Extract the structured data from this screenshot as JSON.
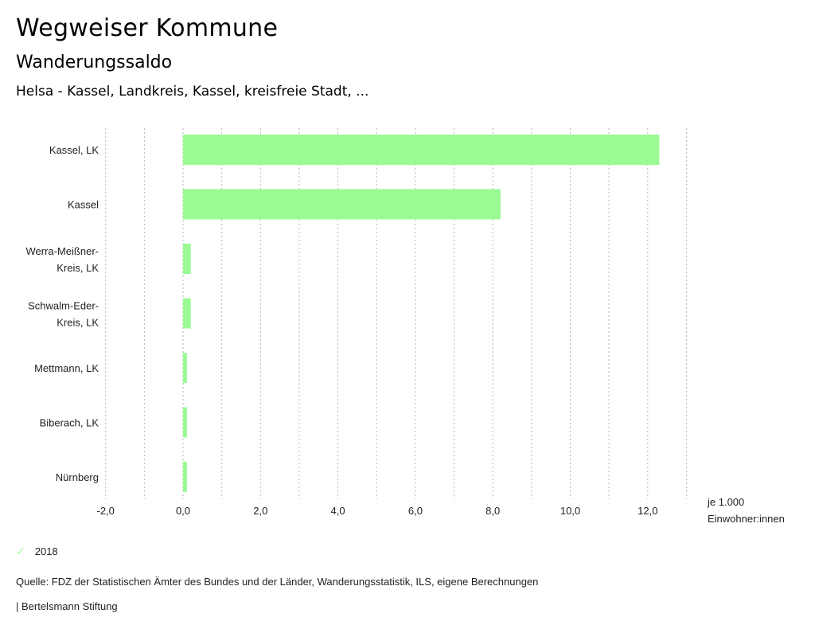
{
  "header": {
    "title": "Wegweiser Kommune",
    "subtitle": "Wanderungssaldo",
    "filter": "Helsa - Kassel, Landkreis, Kassel, kreisfreie Stadt, ..."
  },
  "chart_data": {
    "type": "bar",
    "orientation": "horizontal",
    "title": "Wanderungssaldo",
    "categories": [
      [
        "Kassel, LK"
      ],
      [
        "Kassel"
      ],
      [
        "Werra-Meißner-",
        "Kreis, LK"
      ],
      [
        "Schwalm-Eder-",
        "Kreis, LK"
      ],
      [
        "Mettmann, LK"
      ],
      [
        "Biberach, LK"
      ],
      [
        "Nürnberg"
      ]
    ],
    "series": [
      {
        "name": "2018",
        "color": "#9afa94",
        "values": [
          12.3,
          8.2,
          0.2,
          0.2,
          0.1,
          0.1,
          0.1
        ]
      }
    ],
    "xlim": [
      -2,
      13
    ],
    "xticks": [
      -2,
      0,
      2,
      4,
      6,
      8,
      10,
      12
    ],
    "xtick_labels": [
      "-2,0",
      "0,0",
      "2,0",
      "4,0",
      "6,0",
      "8,0",
      "10,0",
      "12,0"
    ],
    "gridlines_every": 1,
    "grid": true,
    "xlabel": [
      "je 1.000",
      "Einwohner:innen"
    ],
    "legend_position": "bottom-left"
  },
  "legend": {
    "label": "2018",
    "icon": "check-icon"
  },
  "footer": {
    "source": "Quelle: FDZ der Statistischen Ämter des Bundes und der Länder, Wanderungsstatistik, ILS, eigene Berechnungen",
    "credit": "| Bertelsmann Stiftung"
  }
}
